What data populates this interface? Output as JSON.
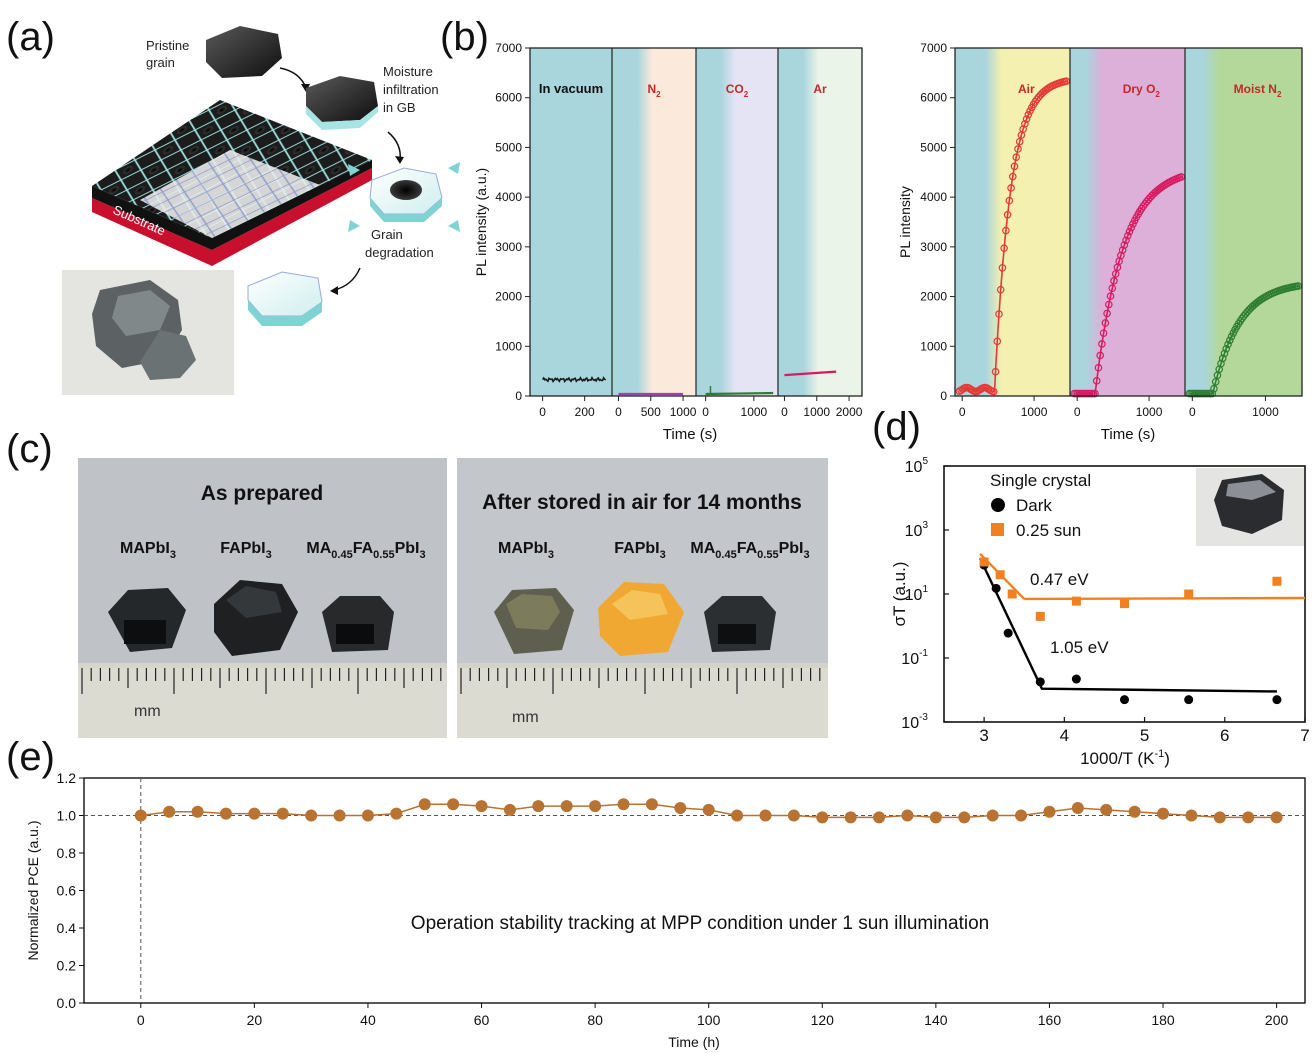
{
  "panels": {
    "a": "(a)",
    "b": "(b)",
    "c": "(c)",
    "d": "(d)",
    "e": "(e)"
  },
  "diagram_a": {
    "pristine": [
      "Pristine",
      "grain"
    ],
    "moisture": [
      "Moisture",
      "infiltration",
      "in GB"
    ],
    "grain_deg": [
      "Grain",
      "degradation"
    ],
    "substrate": "Substrate"
  },
  "photo_c": {
    "left_title": "As prepared",
    "right_title": "After stored in air for 14 months",
    "ruler_unit": "mm"
  },
  "chart_data": [
    {
      "type": "line",
      "id": "b_left",
      "ylabel": "PL intensity (a.u.)",
      "ylim": [
        0,
        7000
      ],
      "yticks": [
        0,
        1000,
        2000,
        3000,
        4000,
        5000,
        6000,
        7000
      ],
      "sections": [
        {
          "label": "In vacuum",
          "xlim": [
            -60,
            330
          ],
          "xticks": [
            0,
            200
          ],
          "series": {
            "x": [
              0,
              50,
              100,
              150,
              200,
              250,
              300
            ],
            "y": [
              350,
              320,
              360,
              310,
              340,
              300,
              330
            ]
          },
          "color": "#1a1a1a"
        },
        {
          "label": "N",
          "sub": "2",
          "xlim": [
            -100,
            1200
          ],
          "xticks": [
            0,
            500,
            1000
          ],
          "series": {
            "x": [
              0,
              1000
            ],
            "y": [
              40,
              40
            ]
          },
          "color": "#a040b0"
        },
        {
          "label": "CO",
          "sub": "2",
          "xlim": [
            -200,
            1500
          ],
          "xticks": [
            0,
            1000
          ],
          "series": {
            "x": [
              0,
              1400
            ],
            "y": [
              40,
              60
            ]
          },
          "color": "#2e7d32"
        },
        {
          "label": "Ar",
          "xlim": [
            -200,
            2400
          ],
          "xticks": [
            0,
            1000,
            2000
          ],
          "series": {
            "x": [
              0,
              1600
            ],
            "y": [
              420,
              490
            ]
          },
          "color": "#d81b60"
        }
      ]
    },
    {
      "type": "scatter",
      "id": "b_right",
      "ylabel": "PL intensity",
      "xlabel": "Time (s)",
      "ylim": [
        0,
        7000
      ],
      "yticks": [
        0,
        1000,
        2000,
        3000,
        4000,
        5000,
        6000,
        7000
      ],
      "ytick_labels": [
        "0",
        "1000",
        "2000",
        "3000",
        "4000",
        "5000",
        "6000",
        "7000"
      ],
      "sections": [
        {
          "label": "Air",
          "xlim": [
            -100,
            1500
          ],
          "xticks": [
            0,
            1000
          ],
          "color": "#e53935",
          "switch": 450,
          "base": 100,
          "top": 6400,
          "tau": 220,
          "fast": true
        },
        {
          "label": "Dry O",
          "sub": "2",
          "xlim": [
            -100,
            1500
          ],
          "xticks": [
            0,
            1000
          ],
          "color": "#d81b60",
          "switch": 250,
          "base": 50,
          "top": 4600,
          "tau": 380,
          "fast": false
        },
        {
          "label": "Moist N",
          "sub": "2",
          "xlim": [
            -100,
            1500
          ],
          "xticks": [
            0,
            1000
          ],
          "color": "#2e7d32",
          "switch": 280,
          "base": 50,
          "top": 2300,
          "tau": 360,
          "fast": false
        }
      ]
    },
    {
      "type": "scatter",
      "id": "d",
      "title": "Single crystal",
      "xlabel": "1000/T (K",
      "xlabel_sup": "-1",
      "xlabel_tail": ")",
      "ylabel": "σT (a.u.)",
      "xlim": [
        2.5,
        7
      ],
      "xticks": [
        3,
        4,
        5,
        6,
        7
      ],
      "ylog": true,
      "ylim_exp": [
        -3,
        5
      ],
      "yticks_exp": [
        -3,
        -1,
        1,
        3,
        5
      ],
      "series": [
        {
          "name": "Dark",
          "marker": "circle",
          "color": "#000000",
          "x": [
            3.0,
            3.15,
            3.3,
            3.7,
            4.15,
            4.75,
            5.55,
            6.65
          ],
          "y": [
            80,
            15,
            0.6,
            0.018,
            0.022,
            0.005,
            0.005,
            0.005
          ]
        },
        {
          "name": "0.25 sun",
          "marker": "square",
          "color": "#f08020",
          "x": [
            3.0,
            3.2,
            3.35,
            3.7,
            4.15,
            4.75,
            5.55,
            6.65
          ],
          "y": [
            100,
            40,
            10,
            2,
            6,
            5,
            10,
            25
          ]
        }
      ],
      "fits": [
        {
          "color": "#000000",
          "x": [
            2.95,
            3.72,
            6.65
          ],
          "y": [
            130,
            0.011,
            0.009
          ]
        },
        {
          "color": "#f08020",
          "x": [
            2.95,
            3.5
          ],
          "y": [
            180,
            7
          ]
        },
        {
          "color": "#f08020",
          "x": [
            3.5,
            7.0
          ],
          "y": [
            7,
            7.5
          ]
        }
      ],
      "annotations": [
        "0.47 eV",
        "1.05 eV"
      ]
    },
    {
      "type": "scatter",
      "id": "e",
      "xlabel": "Time (h)",
      "ylabel": "Normalized PCE (a.u.)",
      "xlim": [
        -10,
        205
      ],
      "ylim": [
        0,
        1.2
      ],
      "xticks": [
        0,
        20,
        40,
        60,
        80,
        100,
        120,
        140,
        160,
        180,
        200
      ],
      "yticks": [
        0.0,
        0.2,
        0.4,
        0.6,
        0.8,
        1.0,
        1.2
      ],
      "ytick_labels": [
        "0.0",
        "0.2",
        "0.4",
        "0.6",
        "0.8",
        "1.0",
        "1.2"
      ],
      "annotation": "Operation stability tracking at MPP condition under 1 sun illumination",
      "color": "#b87333",
      "x": [
        0,
        5,
        10,
        15,
        20,
        25,
        30,
        35,
        40,
        45,
        50,
        55,
        60,
        65,
        70,
        75,
        80,
        85,
        90,
        95,
        100,
        105,
        110,
        115,
        120,
        125,
        130,
        135,
        140,
        145,
        150,
        155,
        160,
        165,
        170,
        175,
        180,
        185,
        190,
        195,
        200
      ],
      "y": [
        1.0,
        1.02,
        1.02,
        1.01,
        1.01,
        1.01,
        1.0,
        1.0,
        1.0,
        1.01,
        1.06,
        1.06,
        1.05,
        1.03,
        1.05,
        1.05,
        1.05,
        1.06,
        1.06,
        1.04,
        1.03,
        1.0,
        1.0,
        1.0,
        0.99,
        0.99,
        0.99,
        1.0,
        0.99,
        0.99,
        1.0,
        1.0,
        1.02,
        1.04,
        1.03,
        1.02,
        1.01,
        1.0,
        0.99,
        0.99,
        0.99
      ]
    }
  ],
  "b_shared_xlabel": "Time (s)",
  "d_legend": {
    "dark": "Dark",
    "sun": "0.25 sun"
  }
}
